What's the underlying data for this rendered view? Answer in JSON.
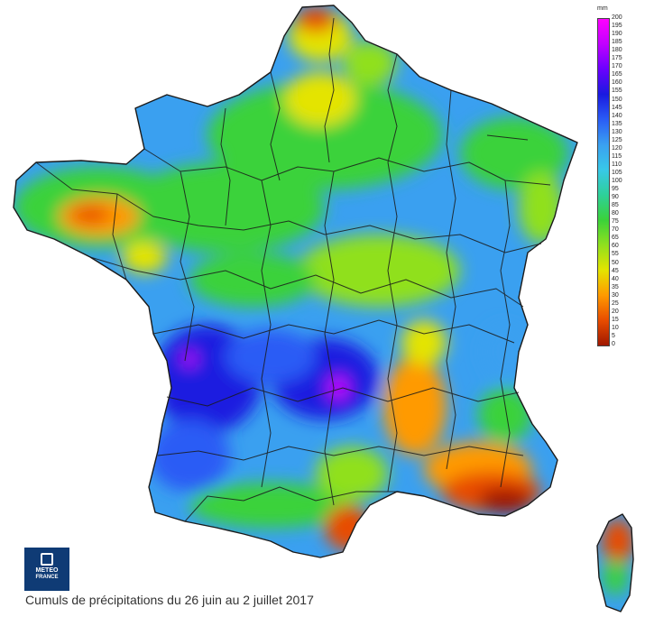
{
  "legend": {
    "unit": "mm",
    "ticks": [
      "200",
      "195",
      "190",
      "185",
      "180",
      "175",
      "170",
      "165",
      "160",
      "155",
      "150",
      "145",
      "140",
      "135",
      "130",
      "125",
      "120",
      "115",
      "110",
      "105",
      "100",
      "95",
      "90",
      "85",
      "80",
      "75",
      "70",
      "65",
      "60",
      "55",
      "50",
      "45",
      "40",
      "35",
      "30",
      "25",
      "20",
      "15",
      "10",
      "5",
      "0"
    ],
    "colors": [
      "#ff00ff",
      "#c000ff",
      "#6a00ff",
      "#1a1ae0",
      "#2a5cf5",
      "#3aa0f0",
      "#38c8e8",
      "#2ed09a",
      "#3ad23a",
      "#90e01e",
      "#e4e400",
      "#ff9a00",
      "#e84c00",
      "#a01800"
    ]
  },
  "logo": {
    "line1": "METEO",
    "line2": "FRANCE"
  },
  "caption": "Cumuls de précipitations du 26 juin au 2 juillet 2017"
}
